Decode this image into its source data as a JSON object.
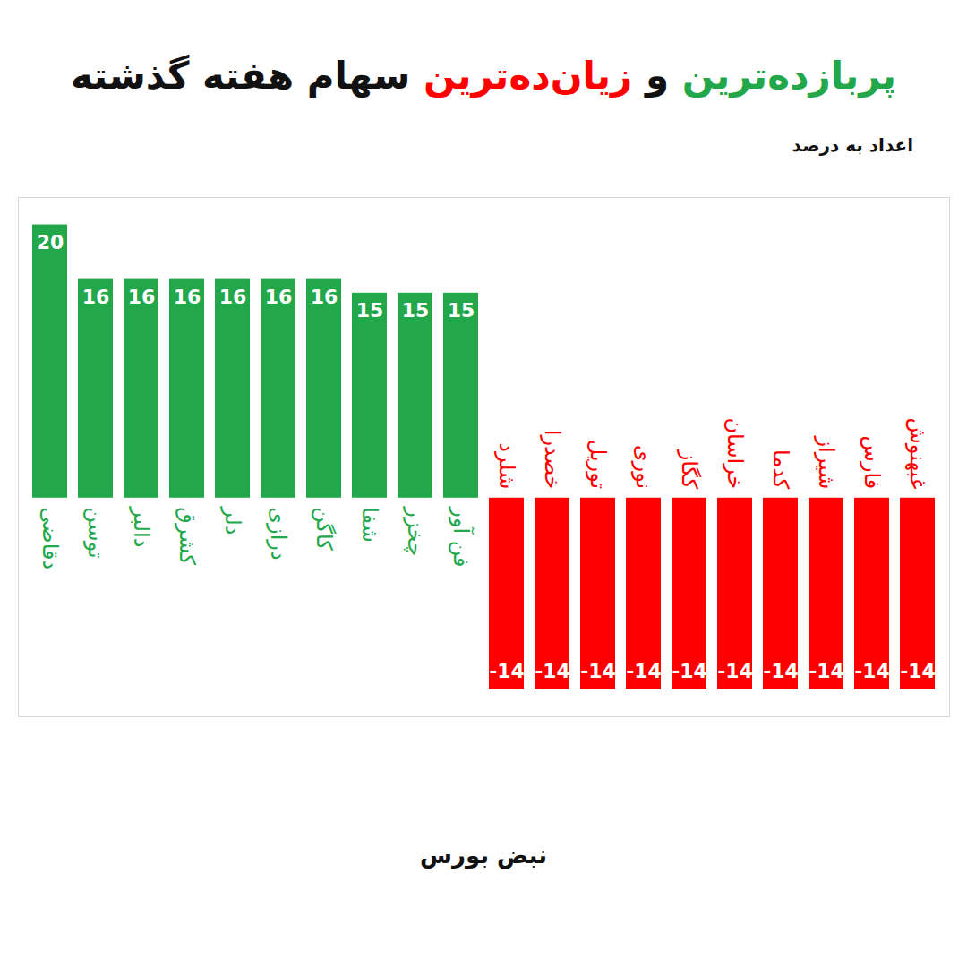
{
  "chart_data": {
    "type": "bar",
    "title": "پربازده‌ترین و زیان‌ده‌ترین سهام هفته گذشته",
    "subtitle": "اعداد به درصد",
    "caption": "نبض بورس",
    "categories": [
      "دقاضی",
      "توسن",
      "دالبر",
      "کشرق",
      "دلر",
      "درازی",
      "کاگن",
      "شفا",
      "چخزر",
      "فن آور",
      "شلرد",
      "خصدرا",
      "توریل",
      "نوری",
      "کگاز",
      "خراسان",
      "کدما",
      "شیراز",
      "فارس",
      "غبهنوش"
    ],
    "values": [
      20,
      16,
      16,
      16,
      16,
      16,
      16,
      15,
      15,
      15,
      -14,
      -14,
      -14,
      -14,
      -14,
      -14,
      -14,
      -14,
      -14,
      -14
    ],
    "colors": [
      "#22a84a",
      "#22a84a",
      "#22a84a",
      "#22a84a",
      "#22a84a",
      "#22a84a",
      "#22a84a",
      "#22a84a",
      "#22a84a",
      "#22a84a",
      "#ff0000",
      "#ff0000",
      "#ff0000",
      "#ff0000",
      "#ff0000",
      "#ff0000",
      "#ff0000",
      "#ff0000",
      "#ff0000",
      "#ff0000"
    ],
    "ylim": [
      -16,
      22
    ],
    "data_labels": true,
    "tick_labels": "x"
  }
}
